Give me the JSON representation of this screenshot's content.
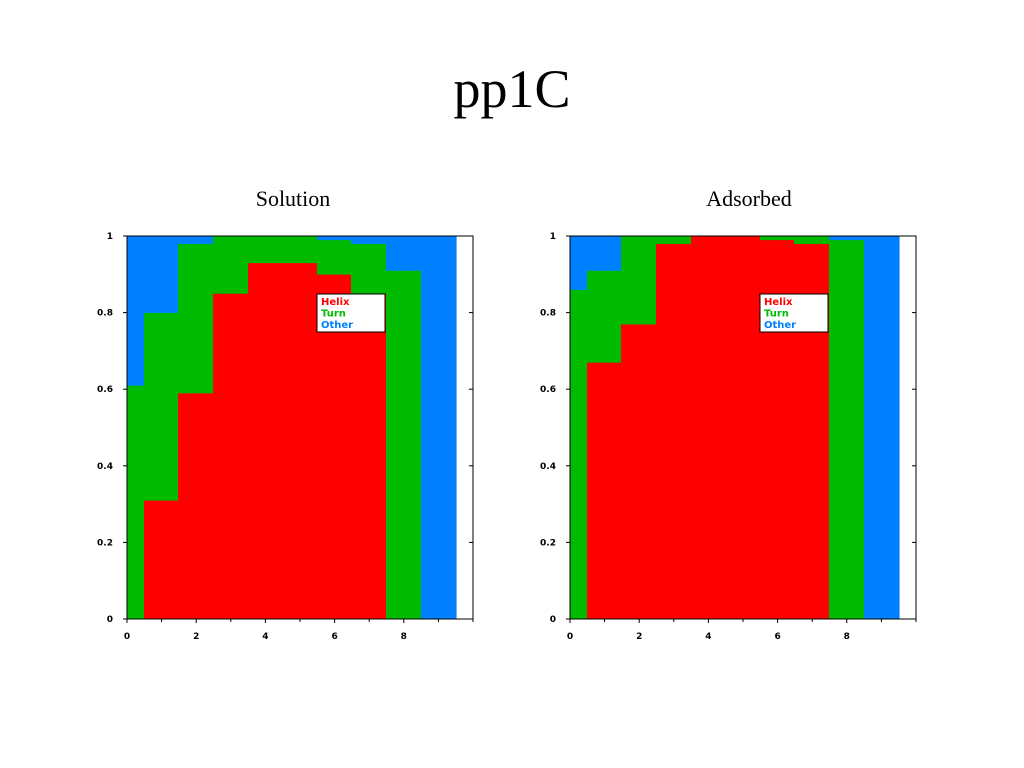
{
  "slide": {
    "title": "pp1C"
  },
  "chart_data": [
    {
      "type": "area",
      "title": "Solution",
      "stacked": true,
      "step": true,
      "x": [
        0,
        1,
        2,
        3,
        4,
        5,
        6,
        7,
        8,
        9
      ],
      "xlim": [
        0,
        10
      ],
      "ylim": [
        0,
        1
      ],
      "xticks": [
        0,
        2,
        4,
        6,
        8
      ],
      "yticks": [
        0,
        0.2,
        0.4,
        0.6,
        0.8,
        1
      ],
      "xtick_labels": [
        "0",
        "2",
        "4",
        "6",
        "8"
      ],
      "ytick_labels": [
        "0",
        "0.2",
        "0.4",
        "0.6",
        "0.8",
        "1"
      ],
      "legend_position": "upper-center",
      "series": [
        {
          "name": "Helix",
          "color": "#ff0000",
          "values": [
            0.0,
            0.31,
            0.59,
            0.85,
            0.93,
            0.93,
            0.9,
            0.85,
            0.0,
            0.0
          ]
        },
        {
          "name": "Turn",
          "color": "#00bb00",
          "values": [
            0.61,
            0.49,
            0.39,
            0.15,
            0.07,
            0.07,
            0.09,
            0.13,
            0.91,
            0.0
          ]
        },
        {
          "name": "Other",
          "color": "#0080ff",
          "values": [
            0.39,
            0.2,
            0.02,
            0.0,
            0.0,
            0.0,
            0.01,
            0.02,
            0.09,
            1.0
          ]
        }
      ]
    },
    {
      "type": "area",
      "title": "Adsorbed",
      "stacked": true,
      "step": true,
      "x": [
        0,
        1,
        2,
        3,
        4,
        5,
        6,
        7,
        8,
        9
      ],
      "xlim": [
        0,
        10
      ],
      "ylim": [
        0,
        1
      ],
      "xticks": [
        0,
        2,
        4,
        6,
        8
      ],
      "yticks": [
        0,
        0.2,
        0.4,
        0.6,
        0.8,
        1
      ],
      "xtick_labels": [
        "0",
        "2",
        "4",
        "6",
        "8"
      ],
      "ytick_labels": [
        "0",
        "0.2",
        "0.4",
        "0.6",
        "0.8",
        "1"
      ],
      "legend_position": "upper-center",
      "series": [
        {
          "name": "Helix",
          "color": "#ff0000",
          "values": [
            0.0,
            0.67,
            0.77,
            0.98,
            1.0,
            1.0,
            0.99,
            0.98,
            0.0,
            0.0
          ]
        },
        {
          "name": "Turn",
          "color": "#00bb00",
          "values": [
            0.86,
            0.24,
            0.23,
            0.02,
            0.0,
            0.0,
            0.01,
            0.02,
            0.99,
            0.0
          ]
        },
        {
          "name": "Other",
          "color": "#0080ff",
          "values": [
            0.14,
            0.09,
            0.0,
            0.0,
            0.0,
            0.0,
            0.0,
            0.0,
            0.01,
            1.0
          ]
        }
      ]
    }
  ]
}
